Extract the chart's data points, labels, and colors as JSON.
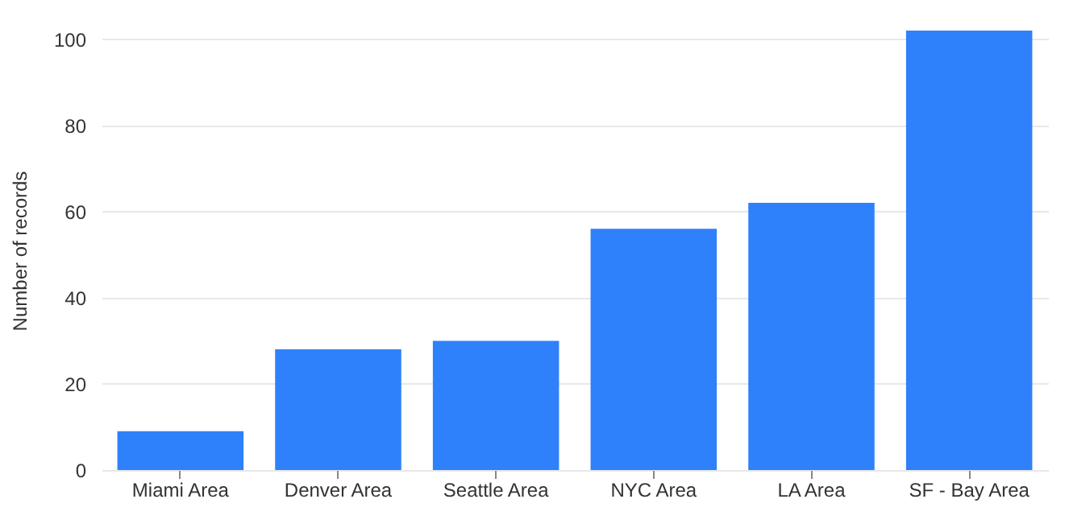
{
  "chart_data": {
    "type": "bar",
    "ylabel": "Number of records",
    "categories": [
      "Miami Area",
      "Denver Area",
      "Seattle Area",
      "NYC Area",
      "LA Area",
      "SF - Bay Area"
    ],
    "values": [
      9,
      28,
      30,
      56,
      62,
      102
    ],
    "color": "#2f80fb",
    "ylim": [
      0,
      102
    ],
    "yticks": [
      0,
      20,
      40,
      60,
      80,
      100
    ],
    "grid": "y"
  }
}
